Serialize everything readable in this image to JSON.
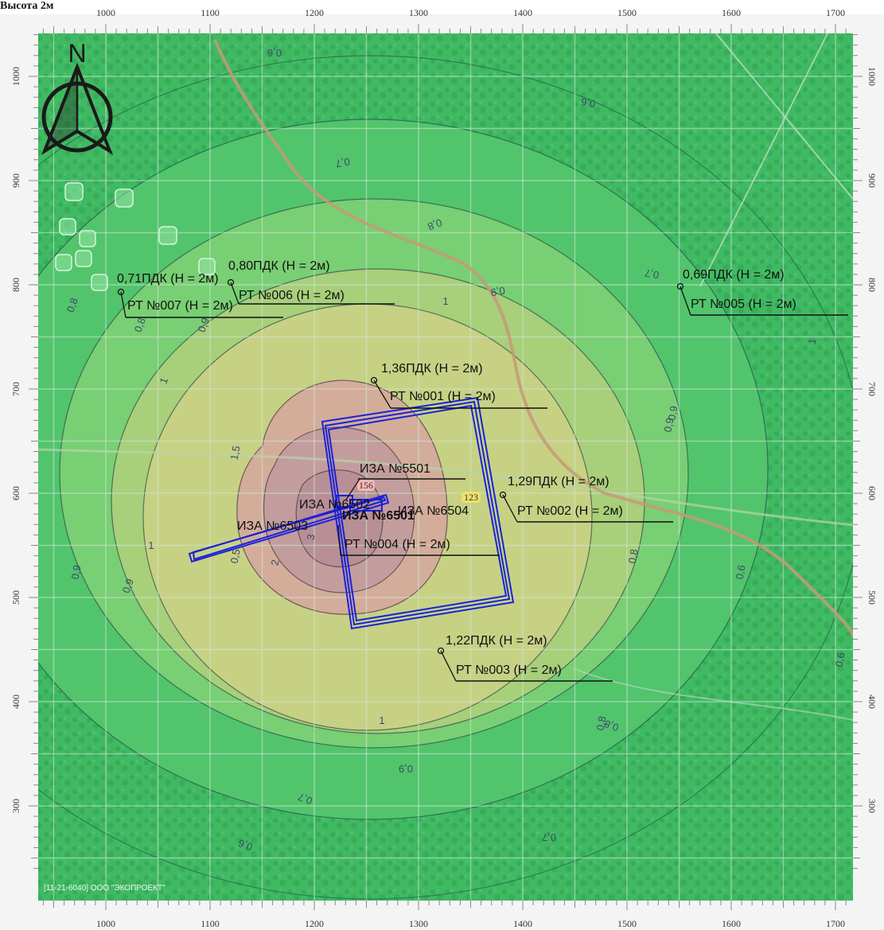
{
  "header": {
    "title": "Высота 2м"
  },
  "compass": {
    "label": "N"
  },
  "axes": {
    "x_ticks": [
      "1000",
      "1100",
      "1200",
      "1300",
      "1400",
      "1500",
      "1600",
      "1700"
    ],
    "y_ticks": [
      "1000",
      "900",
      "800",
      "700",
      "600",
      "500",
      "400",
      "300"
    ]
  },
  "contours": [
    {
      "level": "0,6"
    },
    {
      "level": "0,7"
    },
    {
      "level": "0,8"
    },
    {
      "level": "0,9"
    },
    {
      "level": "1"
    },
    {
      "level": "1,5"
    },
    {
      "level": "2"
    },
    {
      "level": "3"
    }
  ],
  "contour_labels": [
    "0,6",
    "0,6",
    "0,7",
    "0,8",
    "0,7",
    "0,8",
    "0,8",
    "0,9",
    "0,9",
    "0,9",
    "1",
    "1",
    "1",
    "1,5",
    "2",
    "3",
    "0,5",
    "1",
    "0,9",
    "0,9",
    "0,8",
    "0,9",
    "0,8",
    "0,7",
    "0,6",
    "0,7",
    "0,6",
    "0,6",
    "0,9",
    "0,8",
    "1"
  ],
  "callouts": [
    {
      "value": "0,71ПДК (Н = 2м)",
      "point": "РТ №007 (Н = 2м)"
    },
    {
      "value": "0,80ПДК (Н = 2м)",
      "point": "РТ №006 (Н = 2м)"
    },
    {
      "value": "0,69ПДК (Н = 2м)",
      "point": "РТ №005 (Н = 2м)"
    },
    {
      "value": "1,36ПДК (Н = 2м)",
      "point": "РТ №001 (Н = 2м)"
    },
    {
      "value": "1,29ПДК (Н = 2м)",
      "point": "РТ №002 (Н = 2м)"
    },
    {
      "value": "1,22ПДК (Н = 2м)",
      "point": "РТ №003 (Н = 2м)"
    }
  ],
  "source_labels": {
    "iza_5501": "ИЗА №5501",
    "iza_6503": "ИЗА №6503",
    "iza_overlap": "ИЗА №6502",
    "iza_overlap_2": "ИЗА №6501",
    "iza_overlap_3": "ИЗА №6504",
    "rt_004": "РТ №004 (Н = 2м)"
  },
  "markers": [
    "156",
    "123"
  ],
  "credit": "[11-21-6040] ООО \"ЭКОПРОЕКТ\"",
  "colors": {
    "outer": "#3fba63",
    "z07": "#52c46c",
    "z08": "#79cf73",
    "z09": "#a8cf7a",
    "z1": "#c6d184",
    "z15": "#d3ad9a",
    "z2": "#c39d9d",
    "z3": "#b88f96",
    "source": "#1a22d8"
  }
}
